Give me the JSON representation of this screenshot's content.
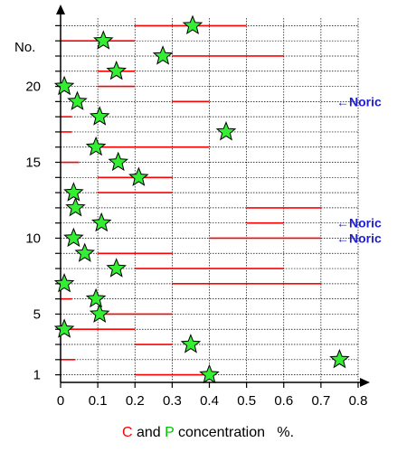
{
  "chart_data": {
    "type": "scatter",
    "title": "",
    "xlabel_parts": [
      {
        "text": "C",
        "color": "#ff0000"
      },
      {
        "text": " and ",
        "color": "#000000"
      },
      {
        "text": "P",
        "color": "#00c000"
      },
      {
        "text": " concentration   %.",
        "color": "#000000"
      }
    ],
    "ylabel": "No.",
    "xlim": [
      0,
      0.8
    ],
    "ylim": [
      0.5,
      24.5
    ],
    "x_ticks": [
      0,
      0.1,
      0.2,
      0.3,
      0.4,
      0.5,
      0.6,
      0.7,
      0.8
    ],
    "x_tick_labels": [
      "0",
      "0.1",
      "0.2",
      "0.3",
      "0.4",
      "0.5",
      "0.6",
      "0.7",
      "0.8"
    ],
    "y_ticks": [
      1,
      5,
      10,
      15,
      20
    ],
    "y_tick_labels": [
      "1",
      "5",
      "10",
      "15",
      "20"
    ],
    "grid": "dashed",
    "carbon_color": "#ff0000",
    "phosphorus_color": "#33ee33",
    "carbon_ranges": [
      {
        "no": 1,
        "range": [
          0.2,
          0.4
        ]
      },
      {
        "no": 2,
        "range": [
          0,
          0.04
        ]
      },
      {
        "no": 3,
        "range": [
          0.2,
          0.3
        ]
      },
      {
        "no": 4,
        "range": [
          0,
          0.2
        ]
      },
      {
        "no": 5,
        "range": [
          0.1,
          0.3
        ]
      },
      {
        "no": 6,
        "range": [
          0,
          0.03
        ]
      },
      {
        "no": 7,
        "range": [
          0.3,
          0.7
        ]
      },
      {
        "no": 8,
        "range": [
          0.2,
          0.6
        ]
      },
      {
        "no": 9,
        "range": [
          0.1,
          0.3
        ]
      },
      {
        "no": 10,
        "range": [
          0.4,
          0.7
        ]
      },
      {
        "no": 11,
        "range": [
          0.5,
          0.6
        ]
      },
      {
        "no": 12,
        "range": [
          0.5,
          0.7
        ]
      },
      {
        "no": 13,
        "range": [
          0.1,
          0.3
        ]
      },
      {
        "no": 14,
        "range": [
          0.1,
          0.3
        ]
      },
      {
        "no": 15,
        "range": [
          0,
          0.05
        ]
      },
      {
        "no": 16,
        "range": [
          0.1,
          0.4
        ]
      },
      {
        "no": 17,
        "range": [
          0,
          0.03
        ]
      },
      {
        "no": 18,
        "range": [
          0,
          0.03
        ]
      },
      {
        "no": 19,
        "range": [
          0.3,
          0.4
        ]
      },
      {
        "no": 20,
        "range": [
          0.1,
          0.2
        ]
      },
      {
        "no": 21,
        "range": [
          0.1,
          0.2
        ]
      },
      {
        "no": 22,
        "range": [
          0.3,
          0.6
        ]
      },
      {
        "no": 23,
        "range": [
          0,
          0.2
        ]
      },
      {
        "no": 24,
        "range": [
          0.2,
          0.5
        ]
      }
    ],
    "phosphorus_values": [
      {
        "no": 1,
        "value": 0.4
      },
      {
        "no": 2,
        "value": 0.75
      },
      {
        "no": 3,
        "value": 0.35
      },
      {
        "no": 4,
        "value": 0.01
      },
      {
        "no": 5,
        "value": 0.105
      },
      {
        "no": 6,
        "value": 0.095
      },
      {
        "no": 7,
        "value": 0.01
      },
      {
        "no": 8,
        "value": 0.15
      },
      {
        "no": 9,
        "value": 0.065
      },
      {
        "no": 10,
        "value": 0.035
      },
      {
        "no": 11,
        "value": 0.11
      },
      {
        "no": 12,
        "value": 0.04
      },
      {
        "no": 13,
        "value": 0.035
      },
      {
        "no": 14,
        "value": 0.21
      },
      {
        "no": 15,
        "value": 0.155
      },
      {
        "no": 16,
        "value": 0.095
      },
      {
        "no": 17,
        "value": 0.445
      },
      {
        "no": 18,
        "value": 0.105
      },
      {
        "no": 19,
        "value": 0.045
      },
      {
        "no": 20,
        "value": 0.01
      },
      {
        "no": 21,
        "value": 0.15
      },
      {
        "no": 22,
        "value": 0.275
      },
      {
        "no": 23,
        "value": 0.115
      },
      {
        "no": 24,
        "value": 0.355
      }
    ],
    "annotations": [
      {
        "no": 19,
        "text": "←Noric"
      },
      {
        "no": 11,
        "text": "←Noric"
      },
      {
        "no": 10,
        "text": "←Noric"
      }
    ]
  }
}
